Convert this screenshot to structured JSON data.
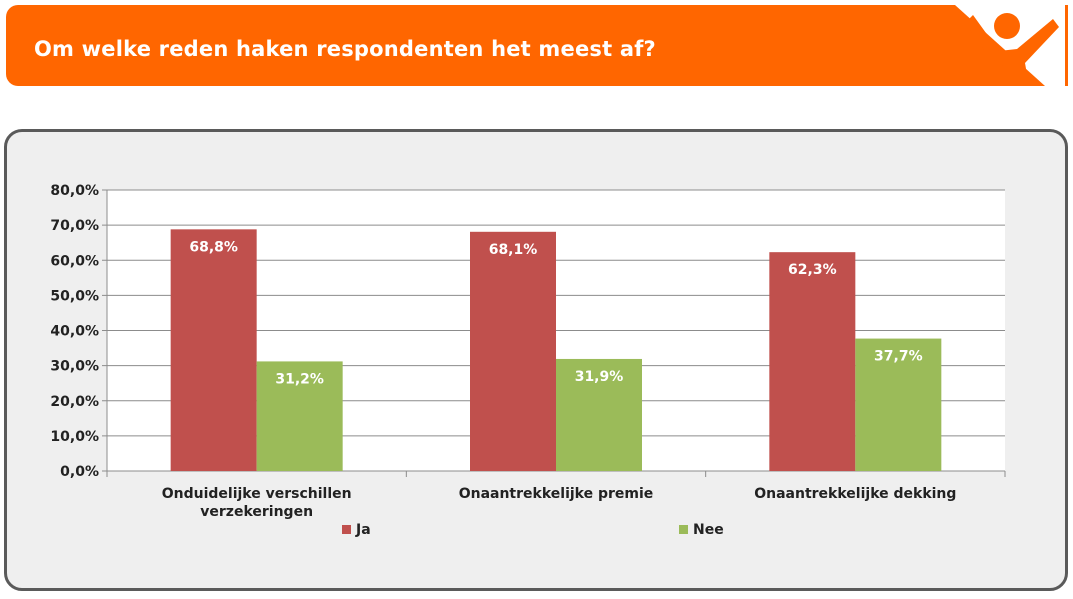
{
  "header": {
    "title": "Om welke reden haken respondenten het meest af?"
  },
  "colors": {
    "accent": "#ff6600",
    "ja": "#c0504d",
    "nee": "#9bbb59",
    "panel": "#efefef"
  },
  "chart_data": {
    "type": "bar",
    "categories": [
      [
        "Onduidelijke verschillen",
        "verzekeringen"
      ],
      [
        "Onaantrekkelijke premie"
      ],
      [
        "Onaantrekkelijke dekking"
      ]
    ],
    "series": [
      {
        "name": "Ja",
        "values": [
          68.8,
          68.1,
          62.3
        ],
        "labels": [
          "68,8%",
          "68,1%",
          "62,3%"
        ],
        "color": "#c0504d"
      },
      {
        "name": "Nee",
        "values": [
          31.2,
          31.9,
          37.7
        ],
        "labels": [
          "31,2%",
          "31,9%",
          "37,7%"
        ],
        "color": "#9bbb59"
      }
    ],
    "ylim": [
      0,
      80
    ],
    "yticks": [
      "0,0%",
      "10,0%",
      "20,0%",
      "30,0%",
      "40,0%",
      "50,0%",
      "60,0%",
      "70,0%",
      "80,0%"
    ],
    "grid": true,
    "legend": "bottom"
  }
}
